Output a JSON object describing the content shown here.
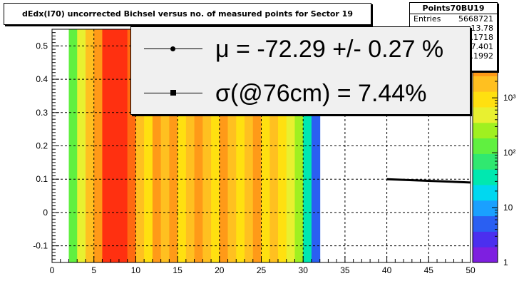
{
  "title": "dEdx(I70) uncorrected Bichsel versus no. of measured points for Sector 19",
  "stats": {
    "name": "Points70BU19",
    "rows": [
      {
        "label": "Entries",
        "value": "5668721"
      },
      {
        "label": "",
        "value": "13.78"
      },
      {
        "label": "",
        "value": "0.1718"
      },
      {
        "label": "",
        "value": "7.401"
      },
      {
        "label": "",
        "value": "0.1992"
      }
    ]
  },
  "legend": {
    "mu_text": "μ  = -72.29 +/-  0.27 %",
    "sigma_text": "σ(@76cm) =  7.44%"
  },
  "colors": {
    "palette": [
      "#7e1fe0",
      "#4b2fef",
      "#2a5ff2",
      "#1aa0ff",
      "#00d8f0",
      "#00e8b0",
      "#30e870",
      "#60f040",
      "#a0f020",
      "#e8f030",
      "#ffe010",
      "#ffc020",
      "#ff9a18",
      "#ff6a10",
      "#ff3010"
    ],
    "fit_line": "#000000"
  },
  "chart_data": {
    "type": "heatmap",
    "title": "dEdx(I70) uncorrected Bichsel versus no. of measured points for Sector 19",
    "xlim": [
      0,
      50
    ],
    "ylim": [
      -0.15,
      0.55
    ],
    "x_ticks": [
      0,
      5,
      10,
      15,
      20,
      25,
      30,
      35,
      40,
      45,
      50
    ],
    "y_ticks": [
      -0.1,
      0,
      0.1,
      0.2,
      0.3,
      0.4,
      0.5
    ],
    "y_tick_labels": [
      "-0.1",
      "0",
      "0.1",
      "0.2",
      "0.3",
      "0.4",
      "0.5"
    ],
    "colorbar_ticks": [
      1,
      10,
      100,
      1000
    ],
    "colorbar_labels": [
      "1",
      "10",
      "10²",
      "10³"
    ],
    "colorbar_log": true,
    "grid": true,
    "columns": [
      {
        "x0": 2,
        "x1": 3,
        "level": 7
      },
      {
        "x0": 3,
        "x1": 4,
        "level": 9
      },
      {
        "x0": 4,
        "x1": 5,
        "level": 11
      },
      {
        "x0": 5,
        "x1": 6,
        "level": 12
      },
      {
        "x0": 6,
        "x1": 7,
        "level": 14
      },
      {
        "x0": 7,
        "x1": 8,
        "level": 14
      },
      {
        "x0": 8,
        "x1": 9,
        "level": 14
      },
      {
        "x0": 9,
        "x1": 10,
        "level": 13
      },
      {
        "x0": 10,
        "x1": 11,
        "level": 11
      },
      {
        "x0": 11,
        "x1": 12,
        "level": 10
      },
      {
        "x0": 12,
        "x1": 13,
        "level": 12
      },
      {
        "x0": 13,
        "x1": 14,
        "level": 11
      },
      {
        "x0": 14,
        "x1": 15,
        "level": 12
      },
      {
        "x0": 15,
        "x1": 16,
        "level": 10
      },
      {
        "x0": 16,
        "x1": 17,
        "level": 11
      },
      {
        "x0": 17,
        "x1": 18,
        "level": 12
      },
      {
        "x0": 18,
        "x1": 19,
        "level": 11
      },
      {
        "x0": 19,
        "x1": 20,
        "level": 10
      },
      {
        "x0": 20,
        "x1": 21,
        "level": 12
      },
      {
        "x0": 21,
        "x1": 22,
        "level": 11
      },
      {
        "x0": 22,
        "x1": 23,
        "level": 10
      },
      {
        "x0": 23,
        "x1": 24,
        "level": 11
      },
      {
        "x0": 24,
        "x1": 25,
        "level": 12
      },
      {
        "x0": 25,
        "x1": 26,
        "level": 10
      },
      {
        "x0": 26,
        "x1": 27,
        "level": 11
      },
      {
        "x0": 27,
        "x1": 28,
        "level": 10
      },
      {
        "x0": 28,
        "x1": 29,
        "level": 9
      },
      {
        "x0": 29,
        "x1": 30,
        "level": 8
      },
      {
        "x0": 30,
        "x1": 31,
        "level": 5
      },
      {
        "x0": 31,
        "x1": 32,
        "level": 2
      }
    ],
    "fit_line": {
      "x": [
        40,
        50
      ],
      "y": [
        0.1,
        0.09
      ]
    }
  }
}
